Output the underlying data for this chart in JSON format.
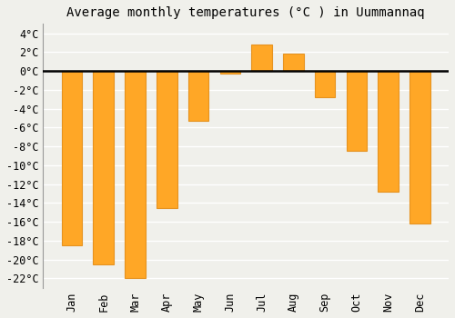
{
  "title": "Average monthly temperatures (°C ) in Uummannaq",
  "months": [
    "Jan",
    "Feb",
    "Mar",
    "Apr",
    "May",
    "Jun",
    "Jul",
    "Aug",
    "Sep",
    "Oct",
    "Nov",
    "Dec"
  ],
  "values": [
    -18.5,
    -20.5,
    -22,
    -14.5,
    -5.3,
    -0.3,
    2.8,
    1.8,
    -2.8,
    -8.5,
    -12.8,
    -16.2
  ],
  "bar_color": "#FFA726",
  "bar_edge_color": "#E69320",
  "background_color": "#f0f0eb",
  "grid_color": "#ffffff",
  "ylim": [
    -23,
    5
  ],
  "yticks": [
    -22,
    -20,
    -18,
    -16,
    -14,
    -12,
    -10,
    -8,
    -6,
    -4,
    -2,
    0,
    2,
    4
  ],
  "ytick_labels": [
    "-22°C",
    "-20°C",
    "-18°C",
    "-16°C",
    "-14°C",
    "-12°C",
    "-10°C",
    "-8°C",
    "-6°C",
    "-4°C",
    "-2°C",
    "0°C",
    "2°C",
    "4°C"
  ],
  "title_fontsize": 10,
  "tick_fontsize": 8.5
}
